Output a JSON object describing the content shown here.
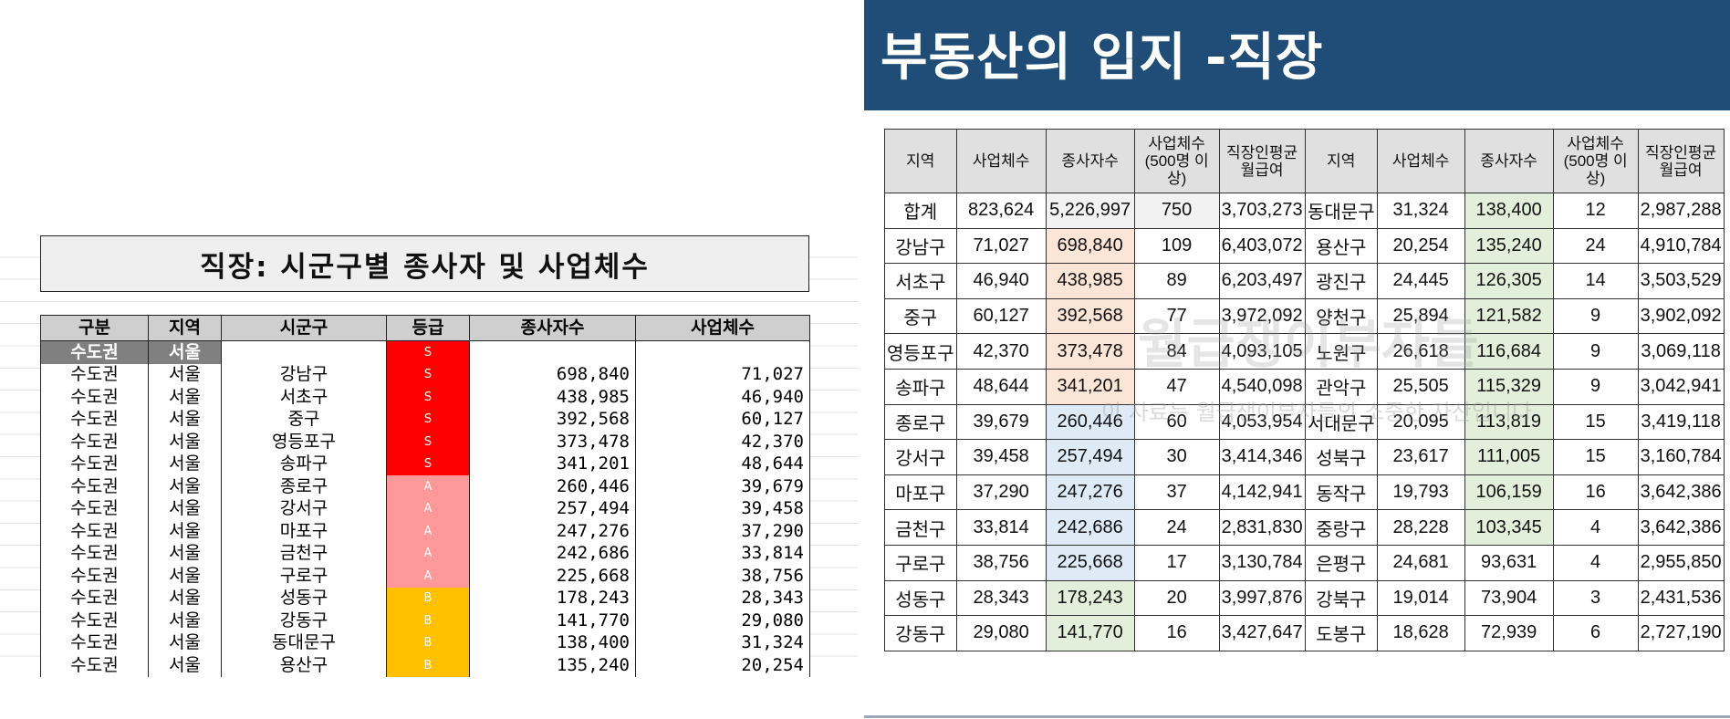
{
  "colors": {
    "banner": "#1f4d78",
    "grade_S": "#ff0000",
    "grade_A": "#ff9999",
    "grade_B": "#ffc000",
    "region_bg": "#808080"
  },
  "sheet": {
    "title": "직장: 시군구별 종사자 및 사업체수",
    "headers": [
      "구분",
      "지역",
      "시군구",
      "등급",
      "종사자수",
      "사업체수"
    ],
    "region_row": {
      "category": "수도권",
      "region": "서울",
      "grade": "S"
    },
    "rows": [
      {
        "cat": "수도권",
        "region": "서울",
        "district": "강남구",
        "grade": "S",
        "workers": "698,840",
        "businesses": "71,027"
      },
      {
        "cat": "수도권",
        "region": "서울",
        "district": "서초구",
        "grade": "S",
        "workers": "438,985",
        "businesses": "46,940"
      },
      {
        "cat": "수도권",
        "region": "서울",
        "district": "중구",
        "grade": "S",
        "workers": "392,568",
        "businesses": "60,127"
      },
      {
        "cat": "수도권",
        "region": "서울",
        "district": "영등포구",
        "grade": "S",
        "workers": "373,478",
        "businesses": "42,370"
      },
      {
        "cat": "수도권",
        "region": "서울",
        "district": "송파구",
        "grade": "S",
        "workers": "341,201",
        "businesses": "48,644"
      },
      {
        "cat": "수도권",
        "region": "서울",
        "district": "종로구",
        "grade": "A",
        "workers": "260,446",
        "businesses": "39,679"
      },
      {
        "cat": "수도권",
        "region": "서울",
        "district": "강서구",
        "grade": "A",
        "workers": "257,494",
        "businesses": "39,458"
      },
      {
        "cat": "수도권",
        "region": "서울",
        "district": "마포구",
        "grade": "A",
        "workers": "247,276",
        "businesses": "37,290"
      },
      {
        "cat": "수도권",
        "region": "서울",
        "district": "금천구",
        "grade": "A",
        "workers": "242,686",
        "businesses": "33,814"
      },
      {
        "cat": "수도권",
        "region": "서울",
        "district": "구로구",
        "grade": "A",
        "workers": "225,668",
        "businesses": "38,756"
      },
      {
        "cat": "수도권",
        "region": "서울",
        "district": "성동구",
        "grade": "B",
        "workers": "178,243",
        "businesses": "28,343"
      },
      {
        "cat": "수도권",
        "region": "서울",
        "district": "강동구",
        "grade": "B",
        "workers": "141,770",
        "businesses": "29,080"
      },
      {
        "cat": "수도권",
        "region": "서울",
        "district": "동대문구",
        "grade": "B",
        "workers": "138,400",
        "businesses": "31,324"
      },
      {
        "cat": "수도권",
        "region": "서울",
        "district": "용산구",
        "grade": "B",
        "workers": "135,240",
        "businesses": "20,254"
      }
    ]
  },
  "slide": {
    "title": "부동산의 입지 -직장",
    "watermark": "월급쟁이부자들",
    "watermark_sub": "이 자료는 월급쟁이부자들의 소중한 자산입니다",
    "headers": [
      "지역",
      "사업체수",
      "종사자수",
      "사업체수\n(500명 이상)",
      "직장인평균\n월급여"
    ],
    "table_a": [
      {
        "region": "합계",
        "businesses": "823,624",
        "workers": "5,226,997",
        "large": "750",
        "salary": "3,703,273",
        "hl": "gray"
      },
      {
        "region": "강남구",
        "businesses": "71,027",
        "workers": "698,840",
        "large": "109",
        "salary": "6,403,072",
        "hl": "orange"
      },
      {
        "region": "서초구",
        "businesses": "46,940",
        "workers": "438,985",
        "large": "89",
        "salary": "6,203,497",
        "hl": "orange"
      },
      {
        "region": "중구",
        "businesses": "60,127",
        "workers": "392,568",
        "large": "77",
        "salary": "3,972,092",
        "hl": "orange"
      },
      {
        "region": "영등포구",
        "businesses": "42,370",
        "workers": "373,478",
        "large": "84",
        "salary": "4,093,105",
        "hl": "orange"
      },
      {
        "region": "송파구",
        "businesses": "48,644",
        "workers": "341,201",
        "large": "47",
        "salary": "4,540,098",
        "hl": "orange"
      },
      {
        "region": "종로구",
        "businesses": "39,679",
        "workers": "260,446",
        "large": "60",
        "salary": "4,053,954",
        "hl": "blue"
      },
      {
        "region": "강서구",
        "businesses": "39,458",
        "workers": "257,494",
        "large": "30",
        "salary": "3,414,346",
        "hl": "blue"
      },
      {
        "region": "마포구",
        "businesses": "37,290",
        "workers": "247,276",
        "large": "37",
        "salary": "4,142,941",
        "hl": "blue"
      },
      {
        "region": "금천구",
        "businesses": "33,814",
        "workers": "242,686",
        "large": "24",
        "salary": "2,831,830",
        "hl": "blue"
      },
      {
        "region": "구로구",
        "businesses": "38,756",
        "workers": "225,668",
        "large": "17",
        "salary": "3,130,784",
        "hl": "blue"
      },
      {
        "region": "성동구",
        "businesses": "28,343",
        "workers": "178,243",
        "large": "20",
        "salary": "3,997,876",
        "hl": "green"
      },
      {
        "region": "강동구",
        "businesses": "29,080",
        "workers": "141,770",
        "large": "16",
        "salary": "3,427,647",
        "hl": "green"
      }
    ],
    "table_b": [
      {
        "region": "동대문구",
        "businesses": "31,324",
        "workers": "138,400",
        "large": "12",
        "salary": "2,987,288",
        "hl": "green"
      },
      {
        "region": "용산구",
        "businesses": "20,254",
        "workers": "135,240",
        "large": "24",
        "salary": "4,910,784",
        "hl": "green"
      },
      {
        "region": "광진구",
        "businesses": "24,445",
        "workers": "126,305",
        "large": "14",
        "salary": "3,503,529",
        "hl": "green"
      },
      {
        "region": "양천구",
        "businesses": "25,894",
        "workers": "121,582",
        "large": "9",
        "salary": "3,902,092",
        "hl": "green"
      },
      {
        "region": "노원구",
        "businesses": "26,618",
        "workers": "116,684",
        "large": "9",
        "salary": "3,069,118",
        "hl": "green"
      },
      {
        "region": "관악구",
        "businesses": "25,505",
        "workers": "115,329",
        "large": "9",
        "salary": "3,042,941",
        "hl": "green"
      },
      {
        "region": "서대문구",
        "businesses": "20,095",
        "workers": "113,819",
        "large": "15",
        "salary": "3,419,118",
        "hl": "green"
      },
      {
        "region": "성북구",
        "businesses": "23,617",
        "workers": "111,005",
        "large": "15",
        "salary": "3,160,784",
        "hl": "green"
      },
      {
        "region": "동작구",
        "businesses": "19,793",
        "workers": "106,159",
        "large": "16",
        "salary": "3,642,386",
        "hl": "green"
      },
      {
        "region": "중랑구",
        "businesses": "28,228",
        "workers": "103,345",
        "large": "4",
        "salary": "3,642,386",
        "hl": "green"
      },
      {
        "region": "은평구",
        "businesses": "24,681",
        "workers": "93,631",
        "large": "4",
        "salary": "2,955,850",
        "hl": ""
      },
      {
        "region": "강북구",
        "businesses": "19,014",
        "workers": "73,904",
        "large": "3",
        "salary": "2,431,536",
        "hl": ""
      },
      {
        "region": "도봉구",
        "businesses": "18,628",
        "workers": "72,939",
        "large": "6",
        "salary": "2,727,190",
        "hl": ""
      }
    ]
  }
}
